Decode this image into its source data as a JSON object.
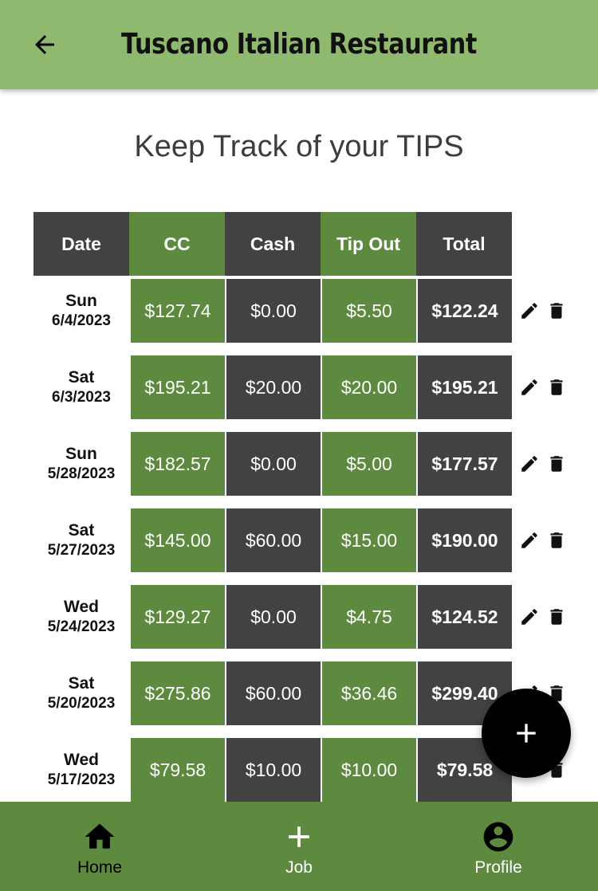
{
  "header": {
    "title": "Tuscano Italian Restaurant",
    "background": "#8fb96e",
    "back_icon": "arrow-left-icon"
  },
  "heading": "Keep Track of your TIPS",
  "table": {
    "columns": [
      "Date",
      "CC",
      "Cash",
      "Tip Out",
      "Total"
    ],
    "colors": {
      "green": "#5e8a3f",
      "dark": "#424242"
    },
    "rows": [
      {
        "day": "Sun",
        "date": "6/4/2023",
        "cc": "$127.74",
        "cash": "$0.00",
        "tip_out": "$5.50",
        "total": "$122.24"
      },
      {
        "day": "Sat",
        "date": "6/3/2023",
        "cc": "$195.21",
        "cash": "$20.00",
        "tip_out": "$20.00",
        "total": "$195.21"
      },
      {
        "day": "Sun",
        "date": "5/28/2023",
        "cc": "$182.57",
        "cash": "$0.00",
        "tip_out": "$5.00",
        "total": "$177.57"
      },
      {
        "day": "Sat",
        "date": "5/27/2023",
        "cc": "$145.00",
        "cash": "$60.00",
        "tip_out": "$15.00",
        "total": "$190.00"
      },
      {
        "day": "Wed",
        "date": "5/24/2023",
        "cc": "$129.27",
        "cash": "$0.00",
        "tip_out": "$4.75",
        "total": "$124.52"
      },
      {
        "day": "Sat",
        "date": "5/20/2023",
        "cc": "$275.86",
        "cash": "$60.00",
        "tip_out": "$36.46",
        "total": "$299.40"
      },
      {
        "day": "Wed",
        "date": "5/17/2023",
        "cc": "$79.58",
        "cash": "$10.00",
        "tip_out": "$10.00",
        "total": "$79.58"
      }
    ],
    "row_actions": [
      "edit-icon",
      "delete-icon"
    ]
  },
  "fab": {
    "icon": "plus-icon"
  },
  "bottom_nav": {
    "background": "#5e8a3f",
    "items": [
      {
        "label": "Home",
        "icon": "home-icon",
        "active": true
      },
      {
        "label": "Job",
        "icon": "plus-icon",
        "active": false
      },
      {
        "label": "Profile",
        "icon": "account-circle-icon",
        "active": false
      }
    ]
  }
}
